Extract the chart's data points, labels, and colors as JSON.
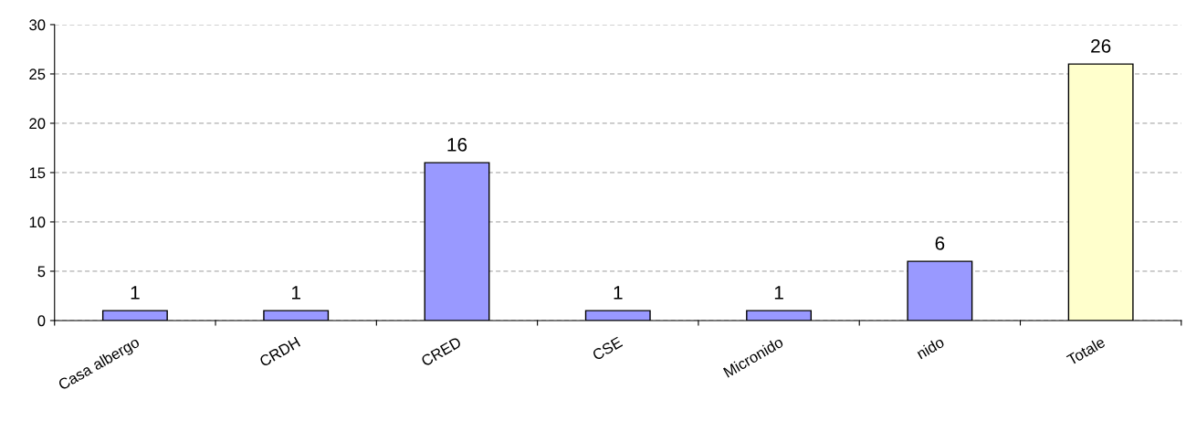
{
  "chart_data": {
    "type": "bar",
    "categories": [
      "Casa albergo",
      "CRDH",
      "CRED",
      "CSE",
      "Micronido",
      "nido",
      "Totale"
    ],
    "values": [
      1,
      1,
      16,
      1,
      1,
      6,
      26
    ],
    "colors": [
      "#9999ff",
      "#9999ff",
      "#9999ff",
      "#9999ff",
      "#9999ff",
      "#9999ff",
      "#ffffcc"
    ],
    "ylim": [
      0,
      30
    ],
    "yticks": [
      0,
      5,
      10,
      15,
      20,
      25,
      30
    ],
    "grid": "y",
    "data_labels": true,
    "legend": false
  }
}
